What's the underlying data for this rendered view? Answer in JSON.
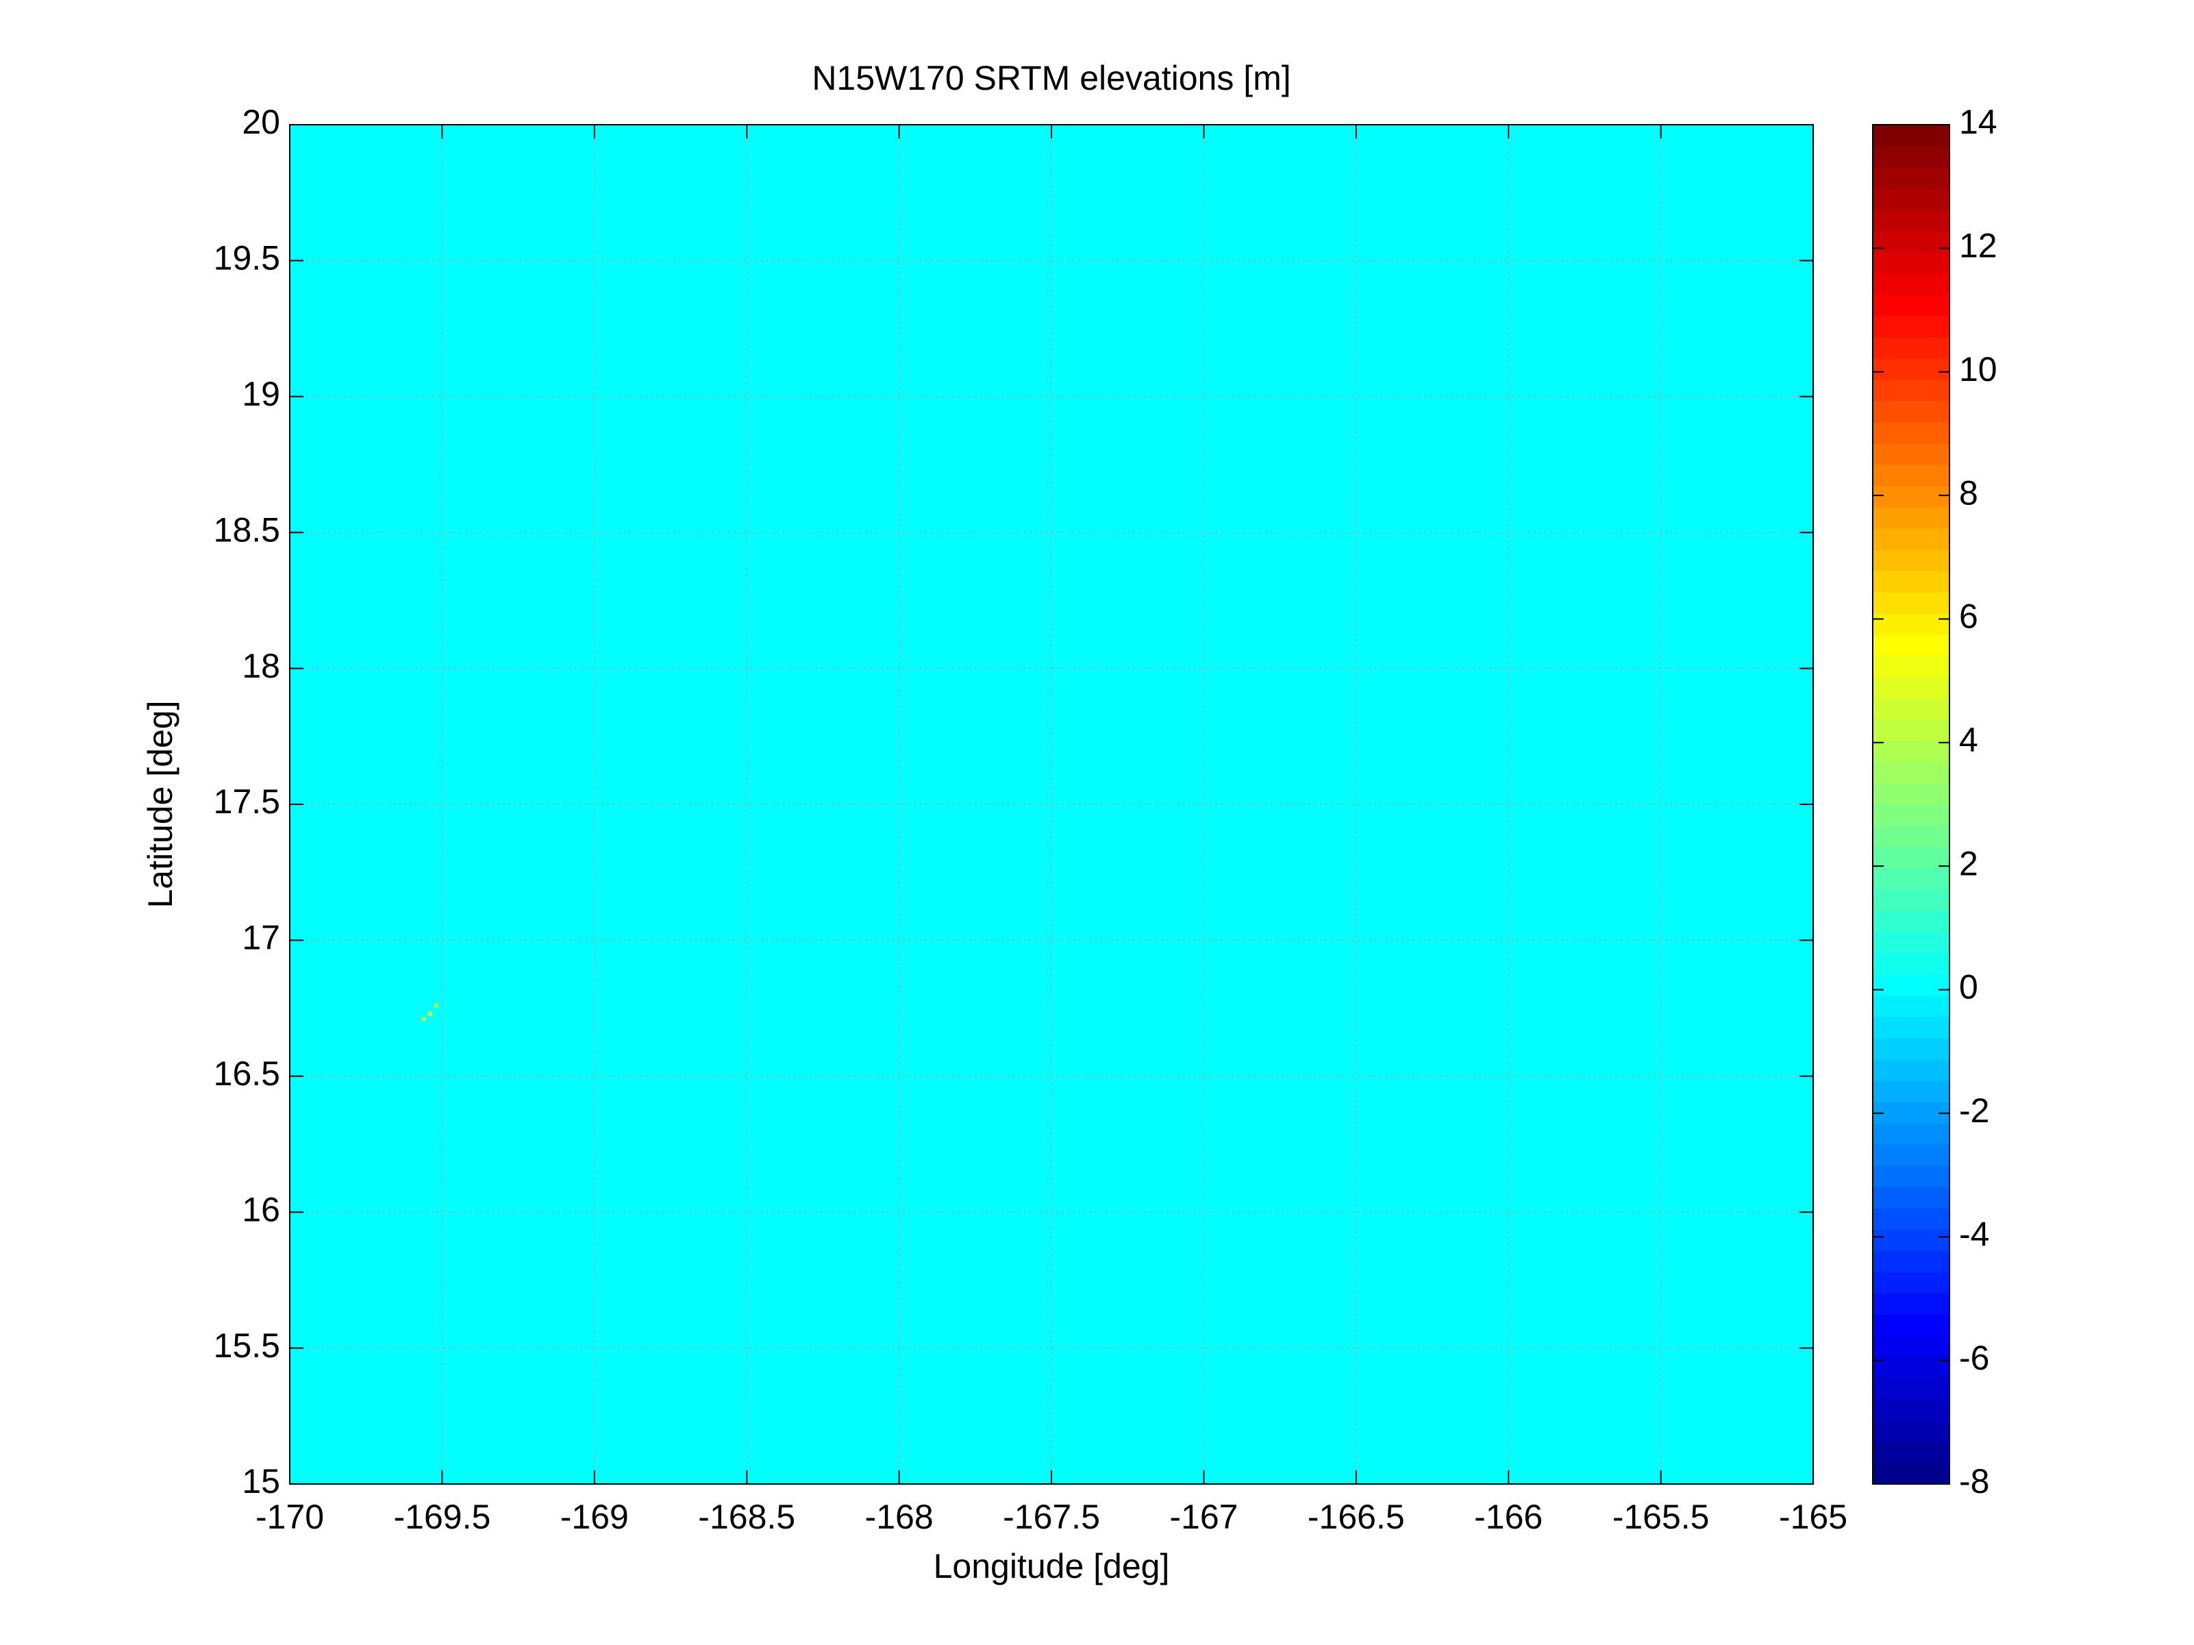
{
  "chart_data": {
    "type": "heatmap",
    "title": "N15W170 SRTM elevations [m]",
    "x_label": "Longitude [deg]",
    "y_label": "Latitude [deg]",
    "colormap": "jet",
    "background_value": 0,
    "points": {
      "x": [
        -169.56,
        -169.54,
        -169.52
      ],
      "y": [
        16.71,
        16.73,
        16.76
      ],
      "values": [
        4,
        5,
        4
      ]
    },
    "xlim": [
      -170,
      -165
    ],
    "xticks": [
      -170,
      -169.5,
      -169,
      -168.5,
      -168,
      -167.5,
      -167,
      -166.5,
      -166,
      -165.5,
      -165
    ],
    "ylim": [
      15,
      20
    ],
    "yticks": [
      15,
      15.5,
      16,
      16.5,
      17,
      17.5,
      18,
      18.5,
      19,
      19.5,
      20
    ],
    "clim": [
      -8,
      14
    ],
    "cticks": [
      -8,
      -6,
      -4,
      -2,
      0,
      2,
      4,
      6,
      8,
      10,
      12,
      14
    ],
    "grid": true
  }
}
